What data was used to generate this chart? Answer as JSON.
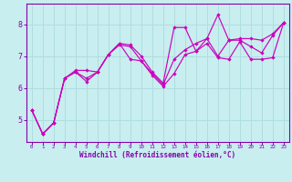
{
  "xlabel": "Windchill (Refroidissement éolien,°C)",
  "background_color": "#c8eef0",
  "grid_color": "#b0dde0",
  "line_color": "#cc00bb",
  "spine_color": "#8800aa",
  "x": [
    0,
    1,
    2,
    3,
    4,
    5,
    6,
    7,
    8,
    9,
    10,
    11,
    12,
    13,
    14,
    15,
    16,
    17,
    18,
    19,
    20,
    21,
    22,
    23
  ],
  "y_top": [
    5.3,
    4.55,
    4.9,
    6.3,
    6.55,
    6.55,
    6.5,
    7.05,
    7.4,
    7.35,
    7.0,
    6.5,
    6.15,
    7.9,
    7.9,
    7.15,
    7.55,
    8.3,
    7.5,
    7.55,
    7.55,
    7.5,
    7.7,
    8.05
  ],
  "y_mid": [
    5.3,
    4.55,
    4.9,
    6.3,
    6.5,
    6.3,
    6.5,
    7.05,
    7.4,
    6.9,
    6.85,
    6.45,
    6.1,
    6.9,
    7.2,
    7.4,
    7.55,
    7.0,
    7.5,
    7.5,
    7.3,
    7.1,
    7.65,
    8.05
  ],
  "y_bot": [
    5.3,
    4.55,
    4.9,
    6.3,
    6.5,
    6.2,
    6.5,
    7.05,
    7.35,
    7.3,
    6.85,
    6.4,
    6.05,
    6.45,
    7.05,
    7.15,
    7.4,
    6.95,
    6.9,
    7.45,
    6.9,
    6.9,
    6.95,
    8.05
  ],
  "ylim": [
    4.3,
    8.65
  ],
  "xlim": [
    -0.5,
    23.5
  ],
  "yticks": [
    5,
    6,
    7,
    8
  ],
  "xticks": [
    0,
    1,
    2,
    3,
    4,
    5,
    6,
    7,
    8,
    9,
    10,
    11,
    12,
    13,
    14,
    15,
    16,
    17,
    18,
    19,
    20,
    21,
    22,
    23
  ]
}
